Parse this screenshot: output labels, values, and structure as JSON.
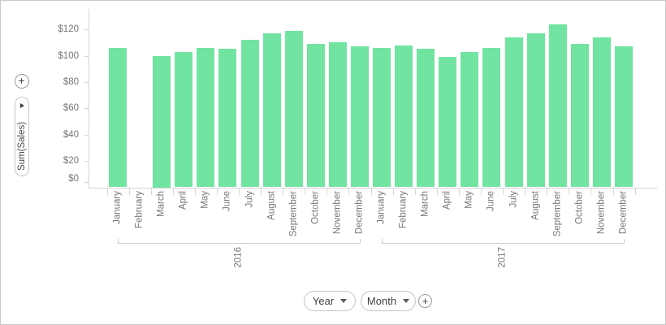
{
  "left_controls": {
    "add_value_field_button": "+",
    "value_field_pill": {
      "label": "Sum(Sales)",
      "expander_icon": "right-triangle"
    }
  },
  "bottom_controls": {
    "year_field_pill": {
      "label": "Year",
      "caret_icon": "down-triangle"
    },
    "month_field_pill": {
      "label": "Month",
      "caret_icon": "down-triangle"
    },
    "add_argument_field_button": "+"
  },
  "chart_data": {
    "type": "bar",
    "title": "",
    "xlabel": "",
    "ylabel": "Sum(Sales)",
    "ylim": [
      0,
      135
    ],
    "grid": false,
    "legend": "none",
    "bar_color": "#71e4a1",
    "axis_color": "#d5d5dc",
    "bracket_color": "#cccccc",
    "label_color": "#767676",
    "y_tick_values": [
      0,
      20,
      40,
      60,
      80,
      100,
      120
    ],
    "y_tick_labels": [
      "$0",
      "$20",
      "$40",
      "$60",
      "$80",
      "$100",
      "$120"
    ],
    "months": [
      "January",
      "February",
      "March",
      "April",
      "May",
      "June",
      "July",
      "August",
      "September",
      "October",
      "November",
      "December"
    ],
    "groups": [
      {
        "year": "2016",
        "values": [
          106,
          null,
          100,
          103,
          106,
          105,
          112,
          117,
          119,
          109,
          110,
          107
        ]
      },
      {
        "year": "2017",
        "values": [
          106,
          108,
          105,
          99,
          103,
          106,
          114,
          117,
          124,
          109,
          114,
          107
        ]
      }
    ]
  }
}
